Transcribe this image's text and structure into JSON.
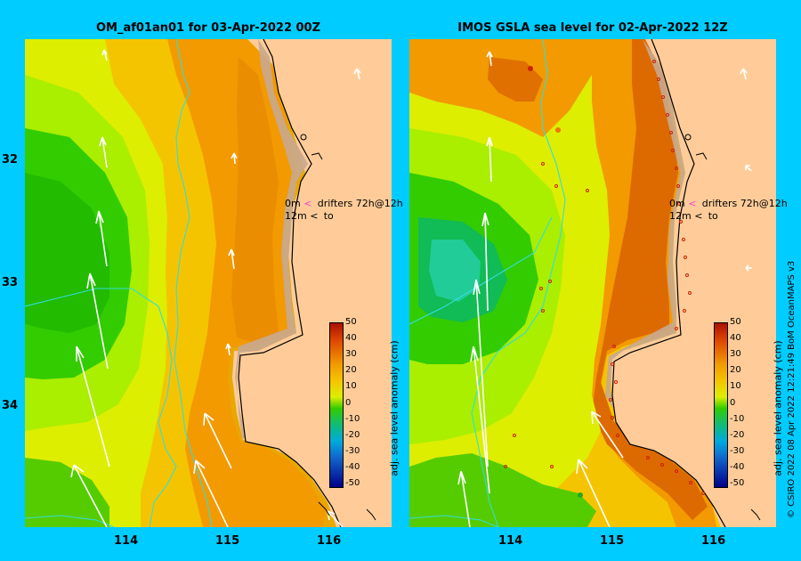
{
  "left_panel": {
    "title": "OM_af01an01 for 03-Apr-2022 00Z",
    "legend": {
      "line1_depth": "0m",
      "line1_text": "drifters 72h@12h",
      "line2_depth": "12m",
      "line2_text": "to"
    }
  },
  "right_panel": {
    "title": "IMOS GSLA sea level  for 02-Apr-2022 12Z",
    "legend": {
      "line1_depth": "0m",
      "line1_text": "drifters 72h@12h",
      "line2_depth": "12m",
      "line2_text": "to"
    }
  },
  "y_ticks": [
    "32",
    "33",
    "34"
  ],
  "x_ticks": [
    "114",
    "115",
    "116"
  ],
  "colorbar": {
    "label": "adj. sea level anomaly (cm)",
    "ticks": [
      "50",
      "40",
      "30",
      "20",
      "10",
      "0",
      "-10",
      "-20",
      "-30",
      "-40",
      "-50"
    ],
    "range": [
      -50,
      50
    ]
  },
  "credit": "© CSIRO 2022   08 Apr 2022 12:21:49 BoM OceanMAPS v3",
  "colors": {
    "background": "#00ccff",
    "land": "#ffcc99",
    "shelf": "#c8a890",
    "arrow": "#ffffff",
    "drifter_marker": "#ff44cc"
  }
}
